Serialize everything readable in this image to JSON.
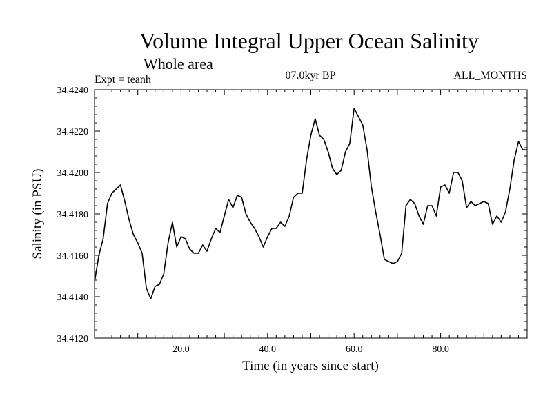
{
  "chart_data": {
    "type": "line",
    "title": "Volume Integral Upper Ocean Salinity",
    "subtitle": "Whole area",
    "experiment": "Expt = teanh",
    "period": "07.0kyr BP",
    "months": "ALL_MONTHS",
    "xlabel": "Time (in years since start)",
    "ylabel": "Salinity (in PSU)",
    "xlim": [
      0,
      100
    ],
    "ylim": [
      34.412,
      34.424
    ],
    "xticks": [
      20,
      40,
      60,
      80
    ],
    "xtick_labels": [
      "20.0",
      "40.0",
      "60.0",
      "80.0"
    ],
    "yticks": [
      34.412,
      34.414,
      34.416,
      34.418,
      34.42,
      34.422,
      34.424
    ],
    "ytick_labels": [
      "34.4120",
      "34.4140",
      "34.4160",
      "34.4180",
      "34.4200",
      "34.4220",
      "34.4240"
    ],
    "series": [
      {
        "name": "salinity",
        "color": "#000000",
        "x": [
          0,
          1,
          2,
          3,
          4,
          5,
          6,
          7,
          8,
          9,
          10,
          11,
          12,
          13,
          14,
          15,
          16,
          17,
          18,
          19,
          20,
          21,
          22,
          23,
          24,
          25,
          26,
          27,
          28,
          29,
          30,
          31,
          32,
          33,
          34,
          35,
          36,
          37,
          38,
          39,
          40,
          41,
          42,
          43,
          44,
          45,
          46,
          47,
          48,
          49,
          50,
          51,
          52,
          53,
          54,
          55,
          56,
          57,
          58,
          59,
          60,
          61,
          62,
          63,
          64,
          65,
          66,
          67,
          68,
          69,
          70,
          71,
          72,
          73,
          74,
          75,
          76,
          77,
          78,
          79,
          80,
          81,
          82,
          83,
          84,
          85,
          86,
          87,
          88,
          89,
          90,
          91,
          92,
          93,
          94,
          95,
          96,
          97,
          98,
          99,
          100
        ],
        "values": [
          34.4147,
          34.416,
          34.4168,
          34.4185,
          34.419,
          34.4192,
          34.4194,
          34.4186,
          34.4177,
          34.417,
          34.4166,
          34.4161,
          34.4144,
          34.4139,
          34.4145,
          34.4146,
          34.4151,
          34.4166,
          34.4176,
          34.4164,
          34.4169,
          34.4168,
          34.4163,
          34.4161,
          34.4161,
          34.4165,
          34.4162,
          34.4168,
          34.4173,
          34.4171,
          34.4179,
          34.4187,
          34.4183,
          34.4189,
          34.4188,
          34.418,
          34.4176,
          34.4173,
          34.4169,
          34.4164,
          34.4169,
          34.4173,
          34.4173,
          34.4176,
          34.4174,
          34.4179,
          34.4188,
          34.419,
          34.419,
          34.4206,
          34.4218,
          34.4226,
          34.4218,
          34.4216,
          34.421,
          34.4202,
          34.4199,
          34.4201,
          34.421,
          34.4214,
          34.4231,
          34.4227,
          34.4223,
          34.4211,
          34.4193,
          34.4181,
          34.417,
          34.4158,
          34.4157,
          34.4156,
          34.4157,
          34.4161,
          34.4184,
          34.4187,
          34.4185,
          34.4179,
          34.4175,
          34.4184,
          34.4184,
          34.4179,
          34.4193,
          34.4194,
          34.419,
          34.42,
          34.42,
          34.4196,
          34.4183,
          34.4186,
          34.4184,
          34.4185,
          34.4186,
          34.4185,
          34.4175,
          34.4179,
          34.4176,
          34.4181,
          34.4192,
          34.4206,
          34.4215,
          34.4211,
          34.4211
        ]
      }
    ]
  }
}
